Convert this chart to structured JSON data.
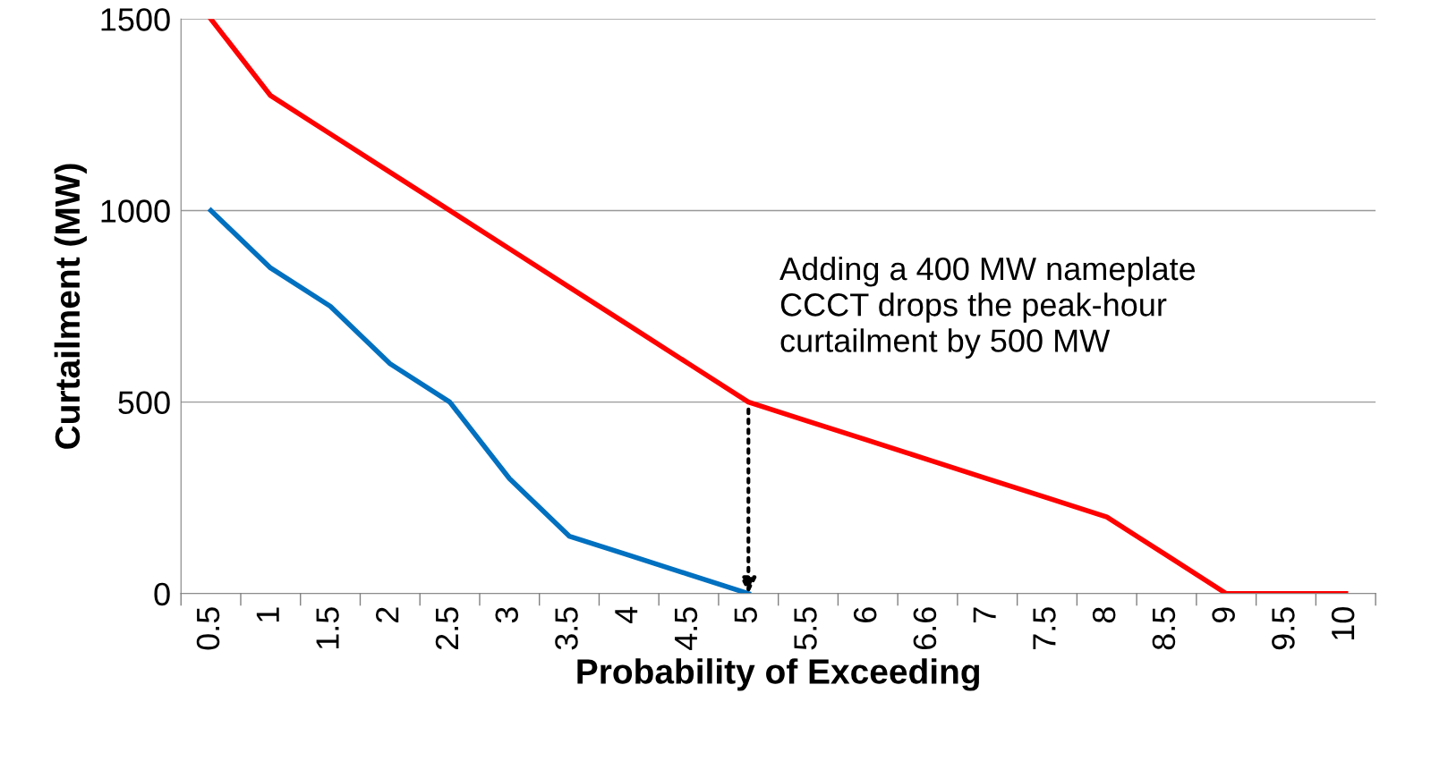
{
  "chart_data": {
    "type": "line",
    "xlabel": "Probability of Exceeding",
    "ylabel": "Curtailment (MW)",
    "categories": [
      "0.5",
      "1",
      "1.5",
      "2",
      "2.5",
      "3",
      "3.5",
      "4",
      "4.5",
      "5",
      "5.5",
      "6",
      "6.6",
      "7",
      "7.5",
      "8",
      "8.5",
      "9",
      "9.5",
      "10"
    ],
    "series": [
      {
        "color": "#ff0000",
        "values": [
          1500,
          1300,
          1200,
          1100,
          1000,
          900,
          800,
          700,
          600,
          500,
          450,
          400,
          350,
          300,
          250,
          200,
          100,
          0,
          0,
          0
        ]
      },
      {
        "color": "#0070c0",
        "values": [
          1000,
          850,
          750,
          600,
          500,
          300,
          150,
          100,
          50,
          0,
          null,
          null,
          null,
          null,
          null,
          null,
          null,
          null,
          null,
          null
        ]
      }
    ],
    "ylim": [
      0,
      1500
    ],
    "yticks": [
      0,
      500,
      1000,
      1500
    ],
    "grid": "y",
    "legend": false,
    "marker": "none",
    "line_style": "solid",
    "annotations": [
      {
        "text": "Adding a 400 MW nameplate\nCCCT drops the peak-hour\ncurtailment by 500 MW",
        "x": "5",
        "y": 500
      }
    ]
  }
}
